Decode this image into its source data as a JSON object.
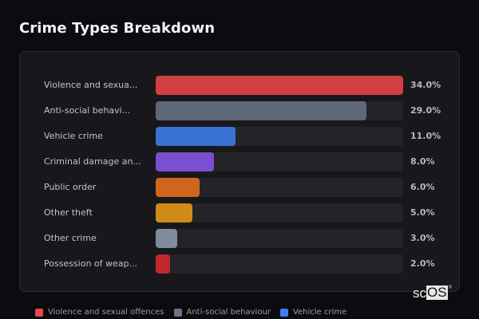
{
  "header": {
    "title": "Crime Types Breakdown"
  },
  "chart_data": {
    "type": "bar",
    "orientation": "horizontal",
    "title": "Crime Types Breakdown",
    "categories": [
      "Violence and sexual offences",
      "Anti-social behaviour",
      "Vehicle crime",
      "Criminal damage and arson",
      "Public order",
      "Other theft",
      "Other crime",
      "Possession of weapons"
    ],
    "display_labels": [
      "Violence and sexua...",
      "Anti-social behavi...",
      "Vehicle crime",
      "Criminal damage an...",
      "Public order",
      "Other theft",
      "Other crime",
      "Possession of weap..."
    ],
    "values": [
      34.0,
      29.0,
      11.0,
      8.0,
      6.0,
      5.0,
      3.0,
      2.0
    ],
    "value_labels": [
      "34.0%",
      "29.0%",
      "11.0%",
      "8.0%",
      "6.0%",
      "5.0%",
      "3.0%",
      "2.0%"
    ],
    "colors": [
      "#d04040",
      "#5e6878",
      "#3a72d4",
      "#7a4fd0",
      "#d0661e",
      "#d08a18",
      "#7f8c9e",
      "#c0282e"
    ],
    "unit": "%",
    "xlabel": "",
    "ylabel": "",
    "grid": false,
    "legend_position": "bottom"
  },
  "legend": [
    {
      "label": "Violence and sexual offences",
      "color": "#e8484c"
    },
    {
      "label": "Anti-social behaviour",
      "color": "#6a7486"
    },
    {
      "label": "Vehicle crime",
      "color": "#3f7ef0"
    }
  ],
  "watermark": {
    "prefix": "sc",
    "boxed": "OS",
    "mark": "®"
  }
}
